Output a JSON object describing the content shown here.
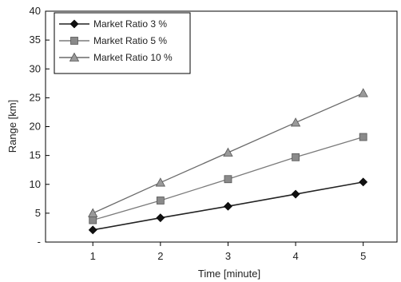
{
  "chart_data": {
    "type": "line",
    "title": "",
    "xlabel": "Time [minute]",
    "ylabel": "Range [km]",
    "x": [
      1,
      2,
      3,
      4,
      5
    ],
    "xlim": [
      0.3,
      5.5
    ],
    "ylim": [
      0,
      40
    ],
    "yticks": [
      0,
      5,
      10,
      15,
      20,
      25,
      30,
      35,
      40
    ],
    "ytick_labels": [
      "-",
      "5",
      "10",
      "15",
      "20",
      "25",
      "30",
      "35",
      "40"
    ],
    "xticks": [
      1,
      2,
      3,
      4,
      5
    ],
    "grid": false,
    "legend_position": "top-left",
    "series": [
      {
        "name": "Market Ratio 3 %",
        "values": [
          2.1,
          4.2,
          6.2,
          8.3,
          10.4
        ],
        "marker": "diamond",
        "color": "#111111",
        "line": "#222222"
      },
      {
        "name": "Market Ratio 5 %",
        "values": [
          3.8,
          7.2,
          10.9,
          14.7,
          18.2
        ],
        "marker": "square",
        "color": "#8a8a8a",
        "line": "#7a7a7a"
      },
      {
        "name": "Market Ratio 10 %",
        "values": [
          5.0,
          10.3,
          15.5,
          20.7,
          25.8
        ],
        "marker": "triangle",
        "color": "#9a9a9a",
        "line": "#6a6a6a"
      }
    ]
  }
}
